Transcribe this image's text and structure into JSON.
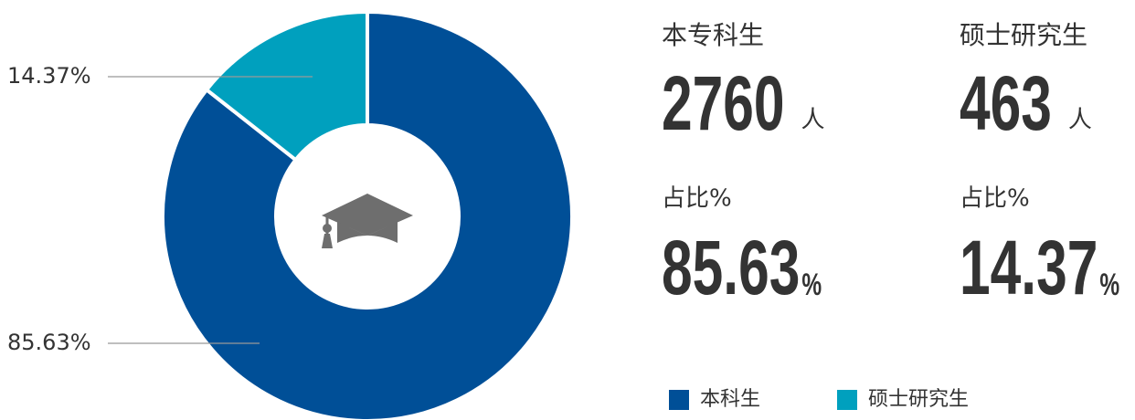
{
  "chart_data": {
    "type": "pie",
    "donut": true,
    "categories": [
      "本科生",
      "硕士研究生"
    ],
    "values": [
      85.63,
      14.37
    ],
    "value_labels": [
      "85.63%",
      "14.37%"
    ],
    "colors": [
      "#004f97",
      "#00a0be"
    ]
  },
  "stats": [
    {
      "label": "本专科生",
      "count": 2760,
      "unit": "人",
      "share_label": "占比%",
      "share_unit": "%"
    },
    {
      "label": "硕士研究生",
      "count": 463,
      "unit": "人",
      "share_label": "占比%",
      "share_unit": "%"
    }
  ]
}
